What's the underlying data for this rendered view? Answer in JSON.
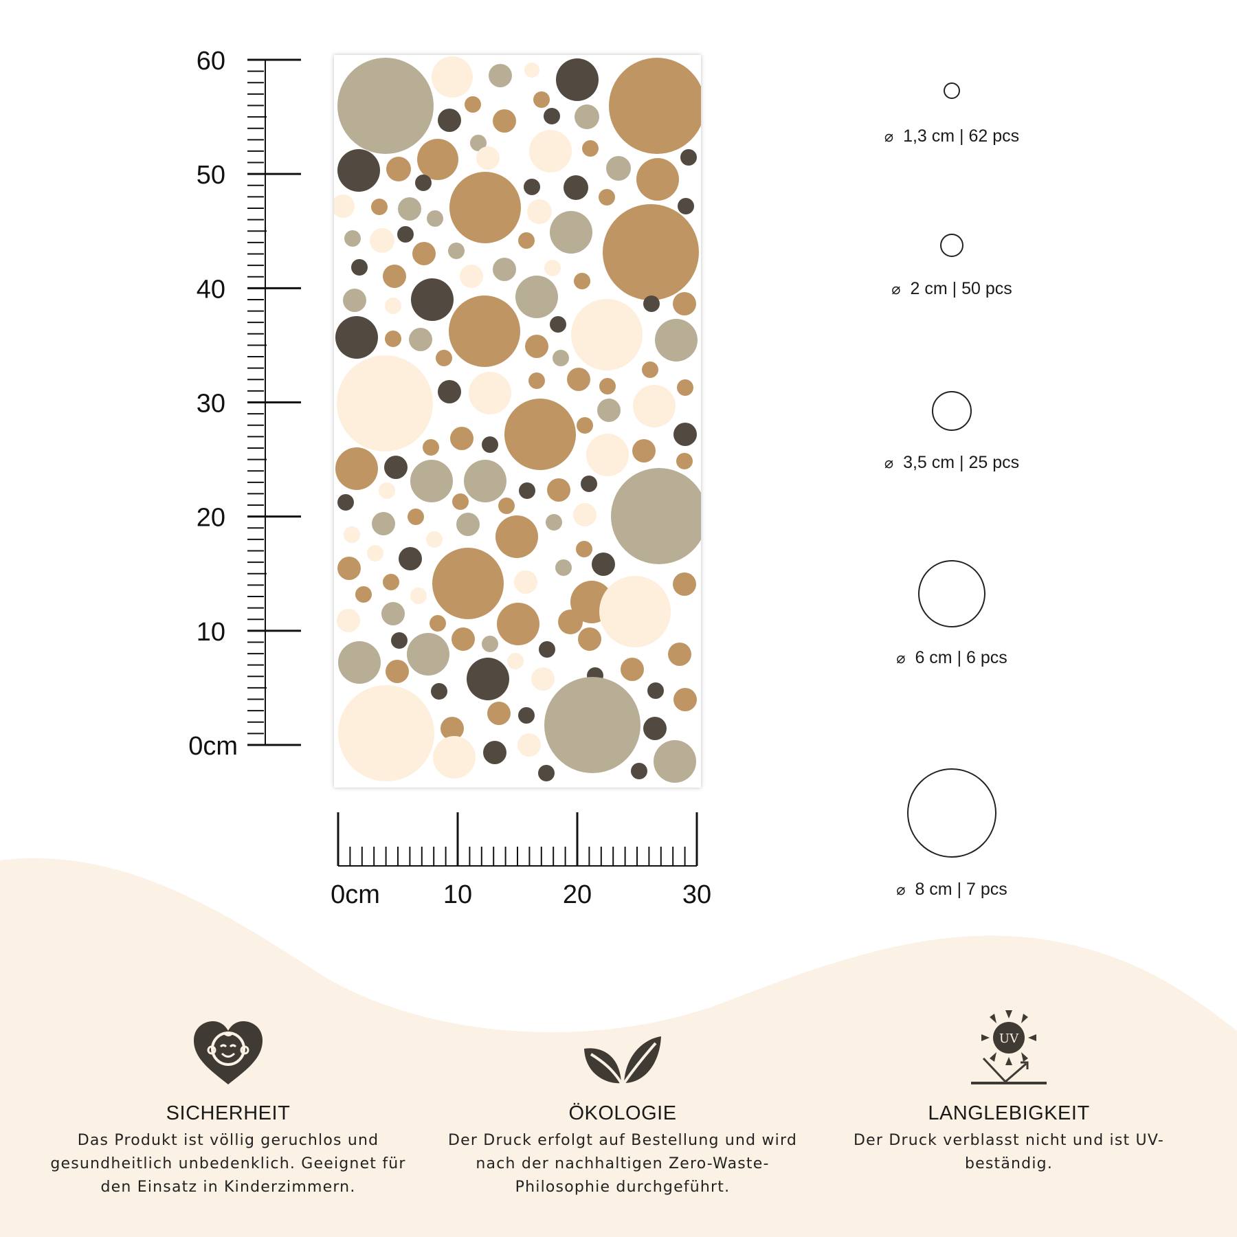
{
  "colors": {
    "background": "#ffffff",
    "wave": "#fbf1e4",
    "dot_caramel": "#c09564",
    "dot_sand": "#b8ae96",
    "dot_cream": "#fdefdc",
    "dot_dark": "#524a40",
    "icon_dark": "#3f3a34"
  },
  "ruler_vertical": {
    "unit_label": "0cm",
    "labels": [
      "0cm",
      "10",
      "20",
      "30",
      "40",
      "50",
      "60"
    ]
  },
  "ruler_horizontal": {
    "labels": [
      "0cm",
      "10",
      "20",
      "30"
    ]
  },
  "sizes": [
    {
      "label": "1,3 cm | 62 pcs",
      "diameter_cm": 1.3
    },
    {
      "label": "2 cm | 50 pcs",
      "diameter_cm": 2
    },
    {
      "label": "3,5 cm | 25 pcs",
      "diameter_cm": 3.5
    },
    {
      "label": "6 cm | 6 pcs",
      "diameter_cm": 6
    },
    {
      "label": "8 cm | 7 pcs",
      "diameter_cm": 8
    }
  ],
  "diameter_symbol": "⌀",
  "features": [
    {
      "icon": "baby-heart-icon",
      "title": "SICHERHEIT",
      "lines": [
        "Das Produkt ist völlig geruchlos und",
        "gesundheitlich unbedenklich. Geeignet für",
        "den Einsatz in Kinderzimmern."
      ]
    },
    {
      "icon": "leaves-icon",
      "title": "ÖKOLOGIE",
      "lines": [
        "Der Druck erfolgt auf Bestellung und wird",
        "nach der nachhaltigen Zero-Waste-",
        "Philosophie durchgeführt."
      ]
    },
    {
      "icon": "uv-sun-icon",
      "title": "LANGLEBIGKEIT",
      "lines": [
        "Der Druck verblasst nicht und ist UV-",
        "beständig."
      ]
    }
  ],
  "uv_text": "UV"
}
